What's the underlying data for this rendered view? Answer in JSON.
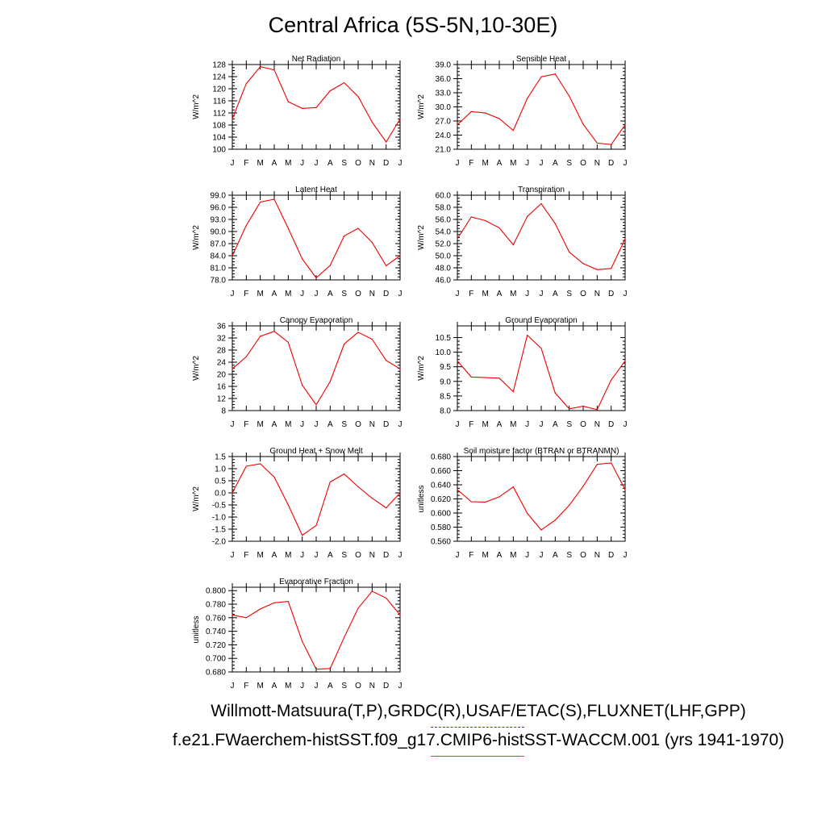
{
  "page": {
    "title": "Central Africa (5S-5N,10-30E)",
    "footer_obs": "Willmott-Matsuura(T,P),GRDC(R),USAF/ETAC(S),FLUXNET(LHF,GPP)",
    "footer_case": "f.e21.FWaerchem-histSST.f09_g17.CMIP6-histSST-WACCM.001 (yrs 1941-1970)",
    "obs_line_color": "#3333ee",
    "case_line_color": "#ee3333"
  },
  "chart_data": [
    {
      "type": "line",
      "title": "Net Radiation",
      "ylabel": "W/m^2",
      "categories": [
        "J",
        "F",
        "M",
        "A",
        "M",
        "J",
        "J",
        "A",
        "S",
        "O",
        "N",
        "D",
        "J"
      ],
      "ylim": [
        100,
        128
      ],
      "yticks": [
        100,
        104,
        108,
        112,
        116,
        120,
        124,
        128
      ],
      "decimals": 0,
      "series": [
        {
          "color": "#ee0000",
          "values": [
            110.0,
            121.7,
            127.3,
            126.2,
            115.7,
            113.5,
            113.8,
            119.3,
            122.0,
            117.4,
            109.0,
            102.4,
            110.0
          ]
        }
      ]
    },
    {
      "type": "line",
      "title": "Sensible Heat",
      "ylabel": "W/m^2",
      "categories": [
        "J",
        "F",
        "M",
        "A",
        "M",
        "J",
        "J",
        "A",
        "S",
        "O",
        "N",
        "D",
        "J"
      ],
      "ylim": [
        21,
        39
      ],
      "yticks": [
        21,
        24,
        27,
        30,
        33,
        36,
        39
      ],
      "decimals": 1,
      "series": [
        {
          "color": "#ee0000",
          "values": [
            26.2,
            29.0,
            28.7,
            27.5,
            25.0,
            31.8,
            36.4,
            37.0,
            32.3,
            26.3,
            22.3,
            22.0,
            26.2
          ]
        }
      ]
    },
    {
      "type": "line",
      "title": "Latent Heat",
      "ylabel": "W/m^2",
      "categories": [
        "J",
        "F",
        "M",
        "A",
        "M",
        "J",
        "J",
        "A",
        "S",
        "O",
        "N",
        "D",
        "J"
      ],
      "ylim": [
        78,
        99
      ],
      "yticks": [
        78,
        81,
        84,
        87,
        90,
        93,
        96,
        99
      ],
      "decimals": 1,
      "series": [
        {
          "color": "#ee0000",
          "values": [
            84.0,
            91.5,
            97.3,
            98.0,
            90.8,
            83.2,
            78.5,
            81.6,
            88.9,
            90.8,
            87.3,
            81.5,
            84.0
          ]
        }
      ]
    },
    {
      "type": "line",
      "title": "Transpiration",
      "ylabel": "W/m^2",
      "categories": [
        "J",
        "F",
        "M",
        "A",
        "M",
        "J",
        "J",
        "A",
        "S",
        "O",
        "N",
        "D",
        "J"
      ],
      "ylim": [
        46,
        60
      ],
      "yticks": [
        46,
        48,
        50,
        52,
        54,
        56,
        58,
        60
      ],
      "decimals": 1,
      "series": [
        {
          "color": "#ee0000",
          "values": [
            52.8,
            56.4,
            55.8,
            54.6,
            51.8,
            56.5,
            58.6,
            55.3,
            50.6,
            48.7,
            47.7,
            47.9,
            52.8
          ]
        }
      ]
    },
    {
      "type": "line",
      "title": "Canopy Evaporation",
      "ylabel": "W/m^2",
      "categories": [
        "J",
        "F",
        "M",
        "A",
        "M",
        "J",
        "J",
        "A",
        "S",
        "O",
        "N",
        "D",
        "J"
      ],
      "ylim": [
        8,
        36
      ],
      "yticks": [
        8,
        12,
        16,
        20,
        24,
        28,
        32,
        36
      ],
      "decimals": 0,
      "series": [
        {
          "color": "#ee0000",
          "values": [
            21.8,
            25.8,
            32.6,
            34.2,
            30.6,
            16.4,
            9.9,
            17.6,
            30.0,
            33.9,
            31.6,
            24.6,
            21.8
          ]
        }
      ]
    },
    {
      "type": "line",
      "title": "Ground Evaporation",
      "ylabel": "W/m^2",
      "categories": [
        "J",
        "F",
        "M",
        "A",
        "M",
        "J",
        "J",
        "A",
        "S",
        "O",
        "N",
        "D",
        "J"
      ],
      "ylim": [
        8.0,
        10.9
      ],
      "yticks": [
        8.0,
        8.5,
        9.0,
        9.5,
        10.0,
        10.5
      ],
      "decimals": 1,
      "series": [
        {
          "color": "#ee0000",
          "values": [
            9.7,
            9.15,
            9.13,
            9.11,
            8.65,
            10.58,
            10.13,
            8.6,
            8.06,
            8.15,
            8.03,
            9.05,
            9.7
          ]
        }
      ]
    },
    {
      "type": "line",
      "title": "Ground Heat + Snow Melt",
      "ylabel": "W/m^2",
      "categories": [
        "J",
        "F",
        "M",
        "A",
        "M",
        "J",
        "J",
        "A",
        "S",
        "O",
        "N",
        "D",
        "J"
      ],
      "ylim": [
        -2.0,
        1.5
      ],
      "yticks": [
        -2.0,
        -1.5,
        -1.0,
        -0.5,
        0.0,
        0.5,
        1.0,
        1.5
      ],
      "decimals": 1,
      "series": [
        {
          "color": "#ee0000",
          "values": [
            0.0,
            1.1,
            1.2,
            0.65,
            -0.5,
            -1.75,
            -1.35,
            0.45,
            0.78,
            0.25,
            -0.22,
            -0.62,
            0.0
          ]
        }
      ]
    },
    {
      "type": "line",
      "title": "Soil moisture factor (BTRAN or BTRANMN)",
      "ylabel": "unitless",
      "categories": [
        "J",
        "F",
        "M",
        "A",
        "M",
        "J",
        "J",
        "A",
        "S",
        "O",
        "N",
        "D",
        "J"
      ],
      "ylim": [
        0.56,
        0.68
      ],
      "yticks": [
        0.56,
        0.58,
        0.6,
        0.62,
        0.64,
        0.66,
        0.68
      ],
      "decimals": 3,
      "series": [
        {
          "color": "#ee0000",
          "values": [
            0.633,
            0.616,
            0.6155,
            0.623,
            0.637,
            0.5995,
            0.576,
            0.59,
            0.611,
            0.638,
            0.669,
            0.671,
            0.633
          ]
        }
      ]
    },
    {
      "type": "line",
      "title": "Evaporative Fraction",
      "ylabel": "unitless",
      "categories": [
        "J",
        "F",
        "M",
        "A",
        "M",
        "J",
        "J",
        "A",
        "S",
        "O",
        "N",
        "D",
        "J"
      ],
      "ylim": [
        0.68,
        0.805
      ],
      "yticks": [
        0.68,
        0.7,
        0.72,
        0.74,
        0.76,
        0.78,
        0.8
      ],
      "decimals": 3,
      "series": [
        {
          "color": "#ee0000",
          "values": [
            0.764,
            0.76,
            0.773,
            0.782,
            0.784,
            0.725,
            0.684,
            0.685,
            0.731,
            0.774,
            0.799,
            0.789,
            0.764
          ]
        }
      ]
    }
  ]
}
